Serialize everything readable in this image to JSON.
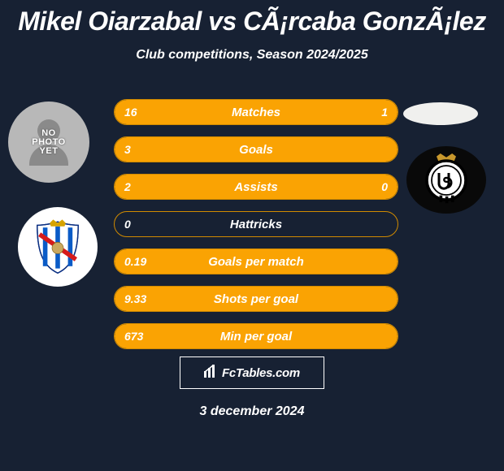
{
  "title": "Mikel Oiarzabal vs CÃ¡rcaba GonzÃ¡lez",
  "subtitle": "Club competitions, Season 2024/2025",
  "footer_brand": "FcTables.com",
  "date": "3 december 2024",
  "bar": {
    "fill_color": "#faa303",
    "border_color": "#d08a00",
    "bg": "#172133",
    "height": 32,
    "radius": 16
  },
  "fonts": {
    "title_size": 32,
    "subtitle_size": 16,
    "row_label_size": 15,
    "row_value_size": 14,
    "date_size": 16
  },
  "player_left": {
    "photo_placeholder": "NO PHOTO YET"
  },
  "rows": [
    {
      "label": "Matches",
      "left": "16",
      "right": "1",
      "left_pct": 80,
      "right_pct": 20,
      "show_right": true
    },
    {
      "label": "Goals",
      "left": "3",
      "right": "",
      "left_pct": 100,
      "right_pct": 0,
      "show_right": false
    },
    {
      "label": "Assists",
      "left": "2",
      "right": "0",
      "left_pct": 100,
      "right_pct": 0,
      "show_right": true
    },
    {
      "label": "Hattricks",
      "left": "0",
      "right": "",
      "left_pct": 0,
      "right_pct": 0,
      "show_right": false
    },
    {
      "label": "Goals per match",
      "left": "0.19",
      "right": "",
      "left_pct": 100,
      "right_pct": 0,
      "show_right": false
    },
    {
      "label": "Shots per goal",
      "left": "9.33",
      "right": "",
      "left_pct": 100,
      "right_pct": 0,
      "show_right": false
    },
    {
      "label": "Min per goal",
      "left": "673",
      "right": "",
      "left_pct": 100,
      "right_pct": 0,
      "show_right": false
    }
  ]
}
